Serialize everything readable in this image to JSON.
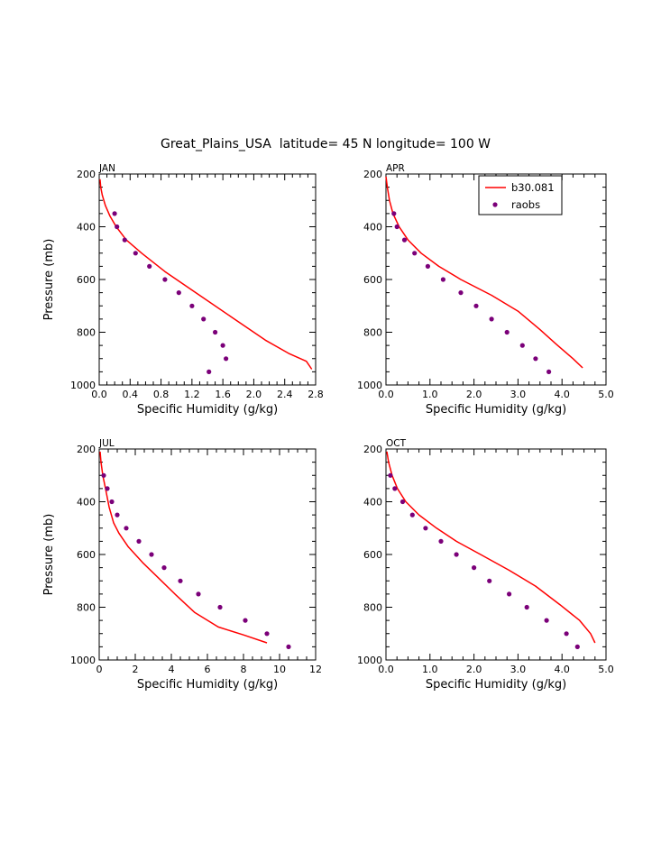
{
  "figure": {
    "title": "Great_Plains_USA  latitude= 45 N longitude= 100 W"
  },
  "legend": {
    "line_label": "b30.081",
    "dot_label": "raobs"
  },
  "colors": {
    "line": "#ff0000",
    "dots": "#7b0079"
  },
  "chart_data": [
    {
      "type": "line",
      "panel": "JAN",
      "xlabel": "Specific Humidity (g/kg)",
      "ylabel": "Pressure (mb)",
      "xlim": [
        0.0,
        2.8
      ],
      "ylim": [
        1000,
        200
      ],
      "xticks": [
        0.0,
        0.4,
        0.8,
        1.2,
        1.6,
        2.0,
        2.4,
        2.8
      ],
      "xtick_labels": [
        "0.0",
        "0.4",
        "0.8",
        "1.2",
        "1.6",
        "2.0",
        "2.4",
        "2.8"
      ],
      "yticks": [
        200,
        400,
        600,
        800,
        1000
      ],
      "ytick_labels": [
        "200",
        "400",
        "600",
        "800",
        "1000"
      ],
      "series": [
        {
          "name": "b30.081",
          "style": "line",
          "x": [
            0.01,
            0.02,
            0.04,
            0.08,
            0.14,
            0.22,
            0.35,
            0.55,
            0.85,
            1.25,
            1.7,
            2.15,
            2.45,
            2.68,
            2.75
          ],
          "y": [
            220,
            250,
            280,
            320,
            360,
            400,
            450,
            500,
            570,
            650,
            740,
            830,
            880,
            910,
            940
          ]
        },
        {
          "name": "raobs",
          "style": "dots",
          "x": [
            0.2,
            0.23,
            0.33,
            0.47,
            0.65,
            0.85,
            1.03,
            1.2,
            1.35,
            1.5,
            1.6,
            1.64,
            1.42
          ],
          "y": [
            350,
            400,
            450,
            500,
            550,
            600,
            650,
            700,
            750,
            800,
            850,
            900,
            950
          ]
        }
      ]
    },
    {
      "type": "line",
      "panel": "APR",
      "xlabel": "Specific Humidity (g/kg)",
      "ylabel": "",
      "xlim": [
        0.0,
        5.0
      ],
      "ylim": [
        1000,
        200
      ],
      "xticks": [
        0.0,
        1.0,
        2.0,
        3.0,
        4.0,
        5.0
      ],
      "xtick_labels": [
        "0.0",
        "1.0",
        "2.0",
        "3.0",
        "4.0",
        "5.0"
      ],
      "yticks": [
        200,
        400,
        600,
        800,
        1000
      ],
      "ytick_labels": [
        "200",
        "400",
        "600",
        "800",
        "1000"
      ],
      "series": [
        {
          "name": "b30.081",
          "style": "line",
          "x": [
            0.0,
            0.03,
            0.08,
            0.16,
            0.3,
            0.5,
            0.8,
            1.2,
            1.7,
            2.4,
            3.0,
            3.5,
            3.9,
            4.25,
            4.47
          ],
          "y": [
            210,
            250,
            300,
            350,
            400,
            450,
            500,
            550,
            600,
            660,
            720,
            790,
            850,
            900,
            935
          ]
        },
        {
          "name": "raobs",
          "style": "dots",
          "x": [
            0.18,
            0.25,
            0.42,
            0.65,
            0.95,
            1.3,
            1.7,
            2.05,
            2.4,
            2.75,
            3.1,
            3.4,
            3.7
          ],
          "y": [
            350,
            400,
            450,
            500,
            550,
            600,
            650,
            700,
            750,
            800,
            850,
            900,
            950
          ]
        }
      ]
    },
    {
      "type": "line",
      "panel": "JUL",
      "xlabel": "Specific Humidity (g/kg)",
      "ylabel": "Pressure (mb)",
      "xlim": [
        0,
        12
      ],
      "ylim": [
        1000,
        200
      ],
      "xticks": [
        0,
        2,
        4,
        6,
        8,
        10,
        12
      ],
      "xtick_labels": [
        "0",
        "2",
        "4",
        "6",
        "8",
        "10",
        "12"
      ],
      "yticks": [
        200,
        400,
        600,
        800,
        1000
      ],
      "ytick_labels": [
        "200",
        "400",
        "600",
        "800",
        "1000"
      ],
      "series": [
        {
          "name": "b30.081",
          "style": "line",
          "x": [
            0.05,
            0.1,
            0.2,
            0.35,
            0.55,
            0.8,
            1.1,
            1.6,
            2.4,
            3.3,
            4.2,
            5.3,
            6.6,
            8.0,
            9.3
          ],
          "y": [
            210,
            250,
            300,
            350,
            420,
            480,
            520,
            570,
            630,
            690,
            750,
            820,
            875,
            905,
            935
          ]
        },
        {
          "name": "raobs",
          "style": "dots",
          "x": [
            0.25,
            0.45,
            0.7,
            1.0,
            1.5,
            2.2,
            2.9,
            3.6,
            4.5,
            5.5,
            6.7,
            8.1,
            9.3,
            10.5
          ],
          "y": [
            300,
            350,
            400,
            450,
            500,
            550,
            600,
            650,
            700,
            750,
            800,
            850,
            900,
            950
          ]
        }
      ]
    },
    {
      "type": "line",
      "panel": "OCT",
      "xlabel": "Specific Humidity (g/kg)",
      "ylabel": "",
      "xlim": [
        0.0,
        5.0
      ],
      "ylim": [
        1000,
        200
      ],
      "xticks": [
        0.0,
        1.0,
        2.0,
        3.0,
        4.0,
        5.0
      ],
      "xtick_labels": [
        "0.0",
        "1.0",
        "2.0",
        "3.0",
        "4.0",
        "5.0"
      ],
      "yticks": [
        200,
        400,
        600,
        800,
        1000
      ],
      "ytick_labels": [
        "200",
        "400",
        "600",
        "800",
        "1000"
      ],
      "series": [
        {
          "name": "b30.081",
          "style": "line",
          "x": [
            0.02,
            0.06,
            0.14,
            0.26,
            0.45,
            0.75,
            1.15,
            1.6,
            2.15,
            2.8,
            3.4,
            3.95,
            4.4,
            4.65,
            4.75
          ],
          "y": [
            210,
            250,
            300,
            350,
            400,
            450,
            500,
            550,
            600,
            660,
            720,
            790,
            850,
            900,
            935
          ]
        },
        {
          "name": "raobs",
          "style": "dots",
          "x": [
            0.1,
            0.2,
            0.38,
            0.6,
            0.9,
            1.25,
            1.6,
            2.0,
            2.35,
            2.8,
            3.2,
            3.65,
            4.1,
            4.35
          ],
          "y": [
            300,
            350,
            400,
            450,
            500,
            550,
            600,
            650,
            700,
            750,
            800,
            850,
            900,
            950
          ]
        }
      ]
    }
  ]
}
